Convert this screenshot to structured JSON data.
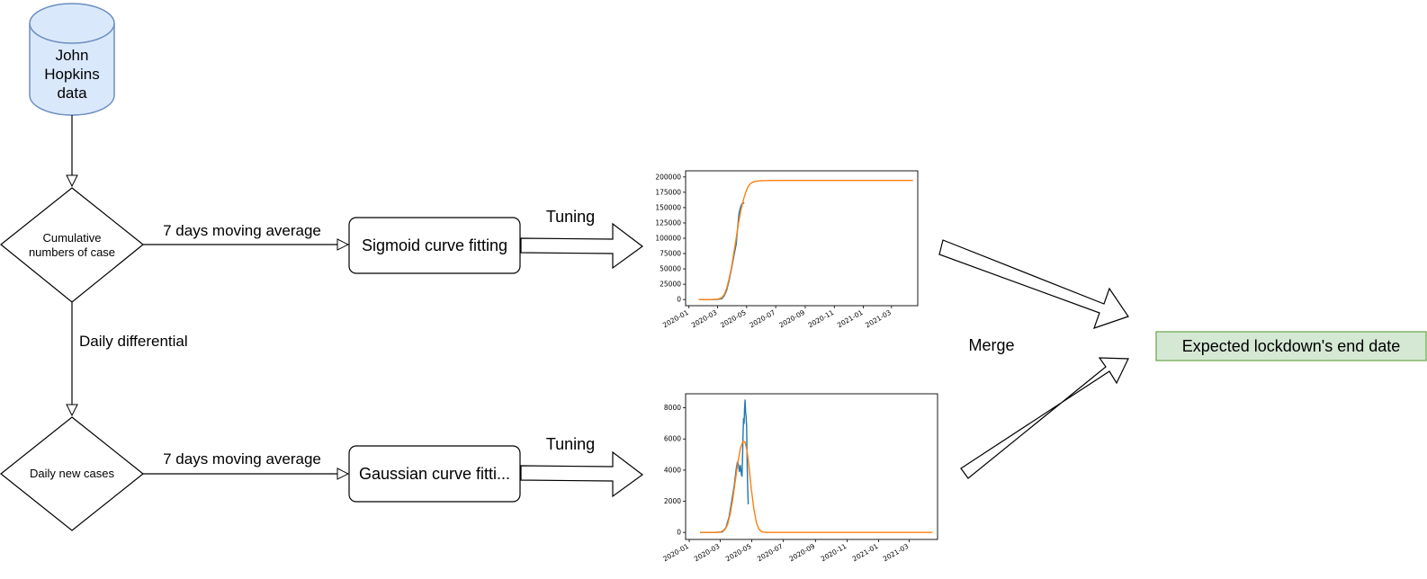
{
  "colors": {
    "stroke": "#000000",
    "db_fill": "#dae8fc",
    "db_stroke": "#6c8ebf",
    "result_fill": "#d5e8d4",
    "result_stroke": "#82b366",
    "series_actual": "#1f77b4",
    "series_fit": "#ff7f0e"
  },
  "nodes": {
    "database": {
      "line1": "John",
      "line2": "Hopkins",
      "line3": "data",
      "icon": "database-cylinder-icon"
    },
    "cumulative": {
      "line1": "Cumulative",
      "line2": "numbers of case"
    },
    "daily_new": {
      "label": "Daily new cases"
    },
    "sigmoid": {
      "label": "Sigmoid curve fitting"
    },
    "gaussian": {
      "label": "Gaussian curve fitti..."
    },
    "result": {
      "label": "Expected lockdown's end date"
    }
  },
  "edges": {
    "ma_top": "7 days moving average",
    "ma_bottom": "7 days moving average",
    "daily_diff": "Daily differential",
    "tuning_top": "Tuning",
    "tuning_bottom": "Tuning",
    "merge": "Merge"
  },
  "chart_data": [
    {
      "type": "line",
      "x_ticks": [
        "2020-01",
        "2020-03",
        "2020-05",
        "2020-07",
        "2020-09",
        "2020-11",
        "2021-01",
        "2021-03"
      ],
      "y_ticks": [
        0,
        25000,
        50000,
        75000,
        100000,
        125000,
        150000,
        175000,
        200000
      ],
      "ylim": [
        -10000,
        210000
      ],
      "grid": false,
      "series": [
        {
          "color": "#1f77b4",
          "x": [
            "2020-01-22",
            "2020-02-15",
            "2020-03-01",
            "2020-03-10",
            "2020-03-15",
            "2020-03-20",
            "2020-03-25",
            "2020-03-30",
            "2020-04-04",
            "2020-04-09",
            "2020-04-12",
            "2020-04-15",
            "2020-04-18",
            "2020-04-21",
            "2020-04-24",
            "2020-04-26"
          ],
          "y": [
            0,
            0,
            100,
            1500,
            6000,
            15000,
            30000,
            50000,
            70000,
            90000,
            115000,
            140000,
            150000,
            156000,
            158000,
            157000
          ]
        },
        {
          "color": "#ff7f0e",
          "x": [
            "2020-01-22",
            "2020-02-15",
            "2020-03-01",
            "2020-03-10",
            "2020-03-15",
            "2020-03-20",
            "2020-03-25",
            "2020-03-30",
            "2020-04-04",
            "2020-04-09",
            "2020-04-14",
            "2020-04-19",
            "2020-04-24",
            "2020-04-29",
            "2020-05-04",
            "2020-05-09",
            "2020-05-14",
            "2020-05-20",
            "2020-06-01",
            "2020-07-01",
            "2020-10-01",
            "2021-01-01",
            "2021-04-15"
          ],
          "y": [
            0,
            0,
            500,
            3000,
            8000,
            18000,
            33000,
            52000,
            75000,
            100000,
            125000,
            146000,
            162000,
            175000,
            184000,
            189000,
            191500,
            193000,
            194000,
            194300,
            194300,
            194300,
            194300
          ]
        }
      ]
    },
    {
      "type": "line",
      "x_ticks": [
        "2020-01",
        "2020-03",
        "2020-05",
        "2020-07",
        "2020-09",
        "2020-11",
        "2021-01",
        "2021-03"
      ],
      "y_ticks": [
        0,
        2000,
        4000,
        6000,
        8000
      ],
      "ylim": [
        -450,
        8900
      ],
      "grid": false,
      "series": [
        {
          "color": "#1f77b4",
          "x": [
            "2020-01-22",
            "2020-02-20",
            "2020-03-05",
            "2020-03-12",
            "2020-03-18",
            "2020-03-23",
            "2020-03-28",
            "2020-04-01",
            "2020-04-03",
            "2020-04-05",
            "2020-04-07",
            "2020-04-09",
            "2020-04-11",
            "2020-04-12",
            "2020-04-13",
            "2020-04-14",
            "2020-04-15",
            "2020-04-16",
            "2020-04-17",
            "2020-04-18",
            "2020-04-19",
            "2020-04-20",
            "2020-04-21",
            "2020-04-22",
            "2020-04-23",
            "2020-04-24"
          ],
          "y": [
            0,
            0,
            30,
            300,
            1000,
            2000,
            3000,
            4100,
            4500,
            4400,
            3900,
            4300,
            3700,
            3600,
            4600,
            6200,
            7300,
            7000,
            7900,
            8500,
            7700,
            7400,
            6800,
            4500,
            2900,
            1800
          ]
        },
        {
          "color": "#ff7f0e",
          "x": [
            "2020-01-22",
            "2020-02-20",
            "2020-03-01",
            "2020-03-10",
            "2020-03-15",
            "2020-03-20",
            "2020-03-25",
            "2020-03-30",
            "2020-04-04",
            "2020-04-09",
            "2020-04-14",
            "2020-04-18",
            "2020-04-22",
            "2020-04-26",
            "2020-04-30",
            "2020-05-05",
            "2020-05-10",
            "2020-05-15",
            "2020-05-20",
            "2020-05-25",
            "2020-06-01",
            "2020-07-01",
            "2021-01-01",
            "2021-04-15"
          ],
          "y": [
            0,
            0,
            20,
            180,
            500,
            1150,
            2100,
            3300,
            4500,
            5400,
            5850,
            5800,
            5200,
            4100,
            2800,
            1500,
            620,
            200,
            50,
            10,
            0,
            0,
            0,
            0
          ]
        }
      ]
    }
  ]
}
